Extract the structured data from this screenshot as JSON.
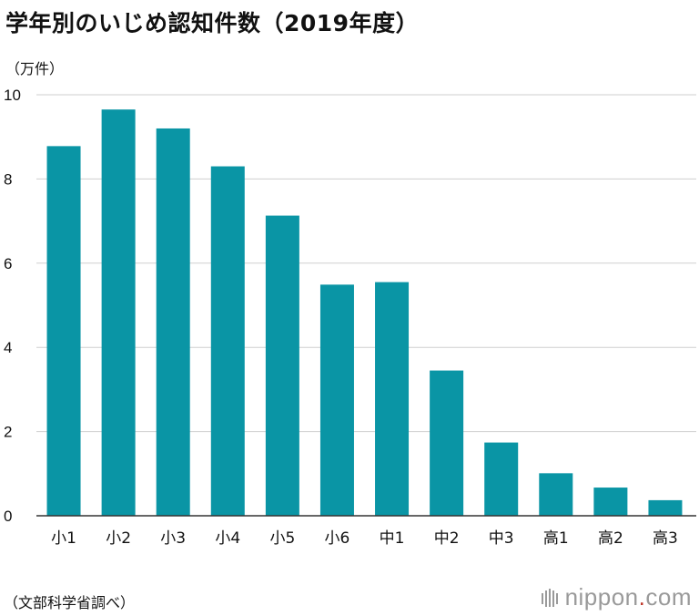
{
  "title": "学年別のいじめ認知件数（2019年度）",
  "unit_label": "（万件）",
  "source": "（文部科学省調べ）",
  "brand": {
    "name": "nippon",
    "dot": ".",
    "tld": "com"
  },
  "colors": {
    "bar": "#0a95a5",
    "grid": "#cfcfcf",
    "axis": "#333333"
  },
  "chart_data": {
    "type": "bar",
    "title": "学年別のいじめ認知件数（2019年度）",
    "ylabel": "（万件）",
    "xlabel": "",
    "ylim": [
      0,
      10
    ],
    "yticks": [
      0,
      2,
      4,
      6,
      8,
      10
    ],
    "grid": true,
    "categories": [
      "小1",
      "小2",
      "小3",
      "小4",
      "小5",
      "小6",
      "中1",
      "中2",
      "中3",
      "高1",
      "高2",
      "高3"
    ],
    "values": [
      8.78,
      9.65,
      9.2,
      8.3,
      7.13,
      5.49,
      5.55,
      3.45,
      1.74,
      1.01,
      0.67,
      0.37
    ]
  }
}
